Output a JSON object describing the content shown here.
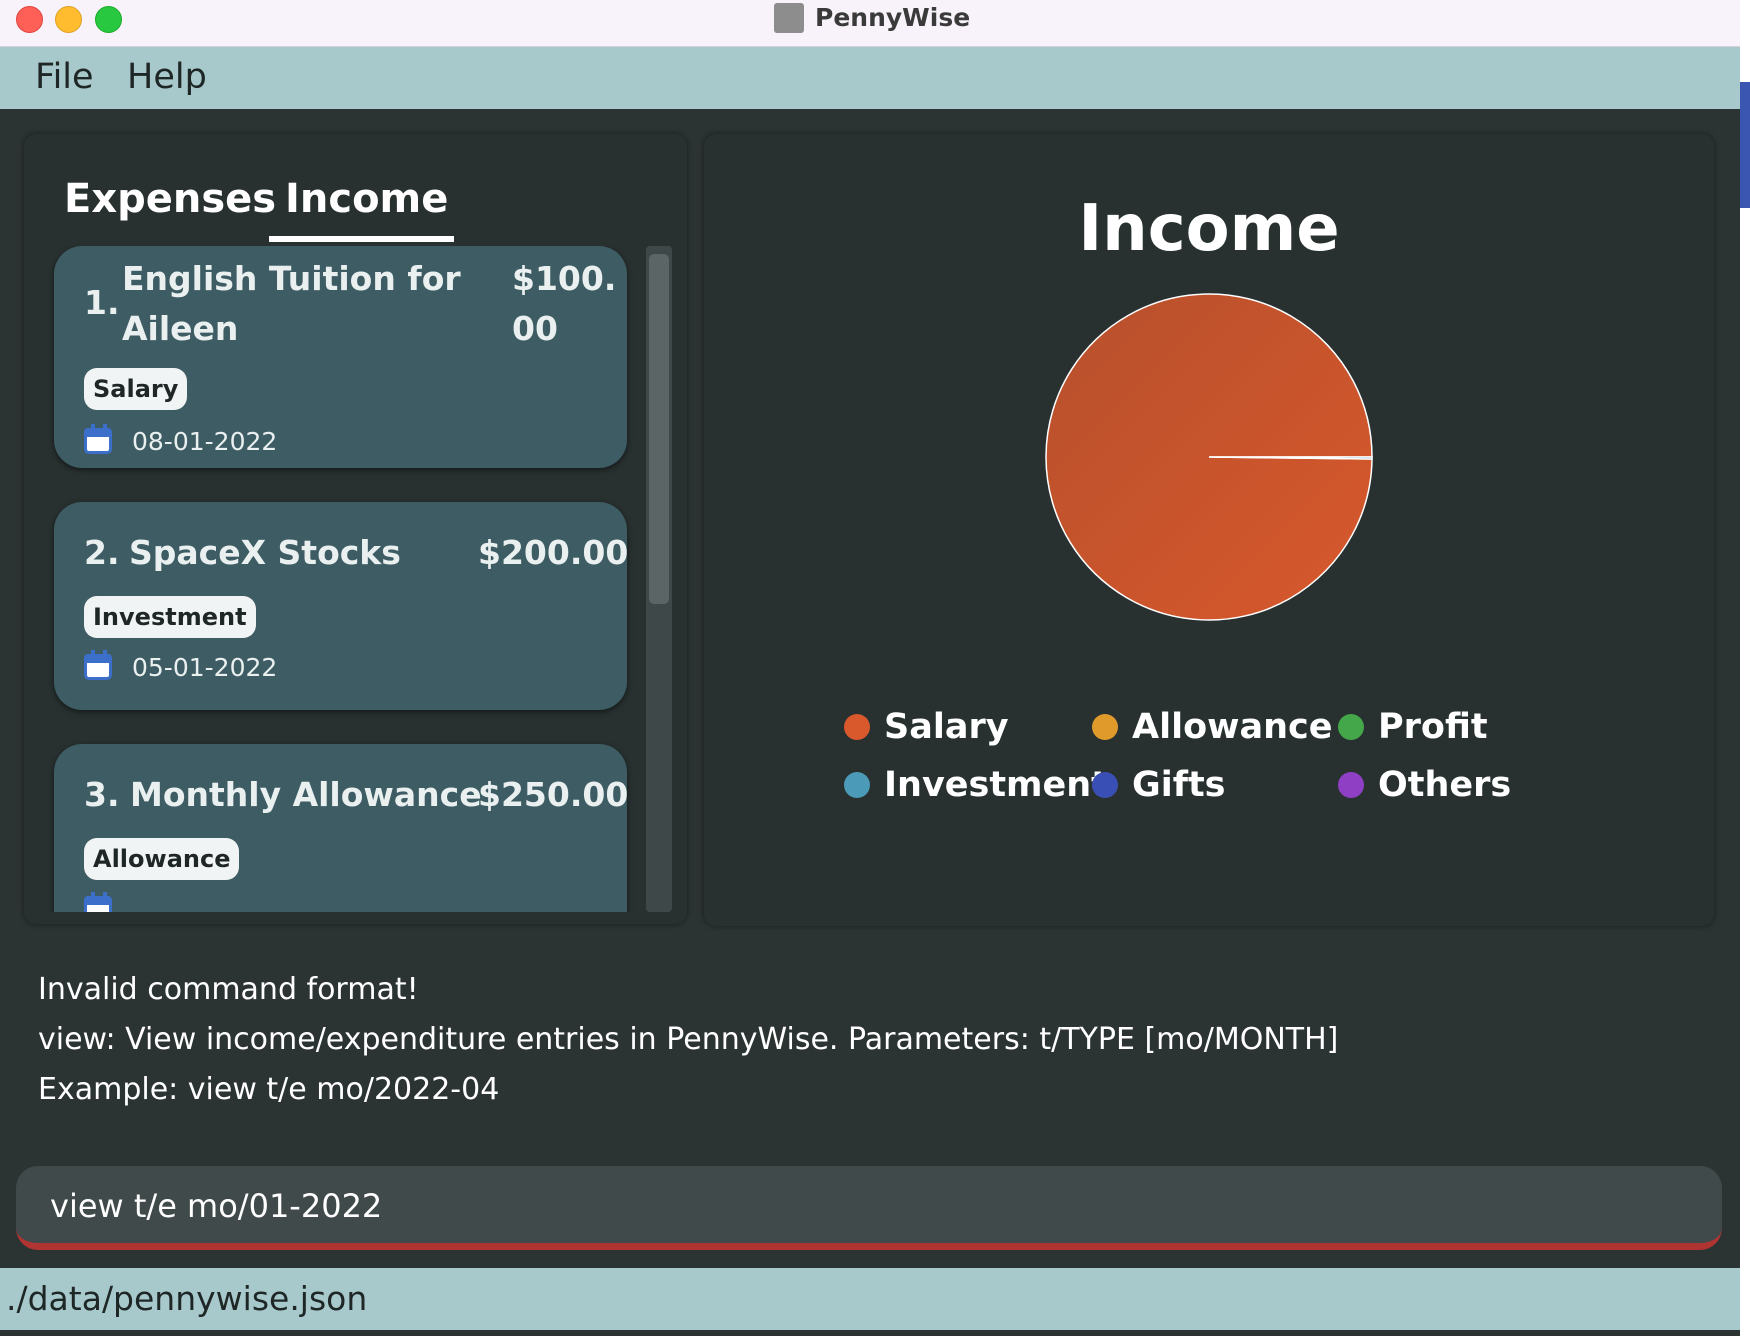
{
  "window": {
    "title": "PennyWise"
  },
  "menu": {
    "file": "File",
    "help": "Help"
  },
  "tabs": [
    {
      "label": "Expenses",
      "active": false
    },
    {
      "label": "Income",
      "active": true
    }
  ],
  "entries": [
    {
      "index": "1.",
      "title_line1": "English Tuition for",
      "title_line2": "Aileen",
      "amount_line1": "$100.",
      "amount_line2": "00",
      "tag": "Salary",
      "date": "08-01-2022"
    },
    {
      "index": "2.",
      "title": "SpaceX Stocks",
      "amount": "$200.00",
      "tag": "Investment",
      "date": "05-01-2022"
    },
    {
      "index": "3.",
      "title": "Monthly Allowance",
      "amount": "$250.00",
      "tag": "Allowance",
      "date": ""
    }
  ],
  "chart_data": {
    "type": "pie",
    "title": "Income",
    "categories": [
      "Salary",
      "Investment",
      "Allowance",
      "Gifts",
      "Profit",
      "Others"
    ],
    "values": [
      99.8,
      0.2,
      0,
      0,
      0,
      0
    ],
    "colors": [
      "#d9582c",
      "#4a9ab8",
      "#e09a2b",
      "#3a4fb5",
      "#44a84a",
      "#8f3fc4"
    ],
    "legend": [
      {
        "label": "Salary",
        "color": "#d9582c"
      },
      {
        "label": "Allowance",
        "color": "#e09a2b"
      },
      {
        "label": "Profit",
        "color": "#44a84a"
      },
      {
        "label": "Investment",
        "color": "#4a9ab8"
      },
      {
        "label": "Gifts",
        "color": "#3a4fb5"
      },
      {
        "label": "Others",
        "color": "#8f3fc4"
      }
    ],
    "legend_placement": "bottom"
  },
  "result": {
    "line1": "Invalid command format!",
    "line2": "view: View income/expenditure entries in PennyWise. Parameters: t/TYPE [mo/MONTH]",
    "line3": "Example: view t/e mo/2022-04"
  },
  "command": {
    "value": "view t/e mo/01-2022"
  },
  "status": {
    "path": "./data/pennywise.json"
  }
}
